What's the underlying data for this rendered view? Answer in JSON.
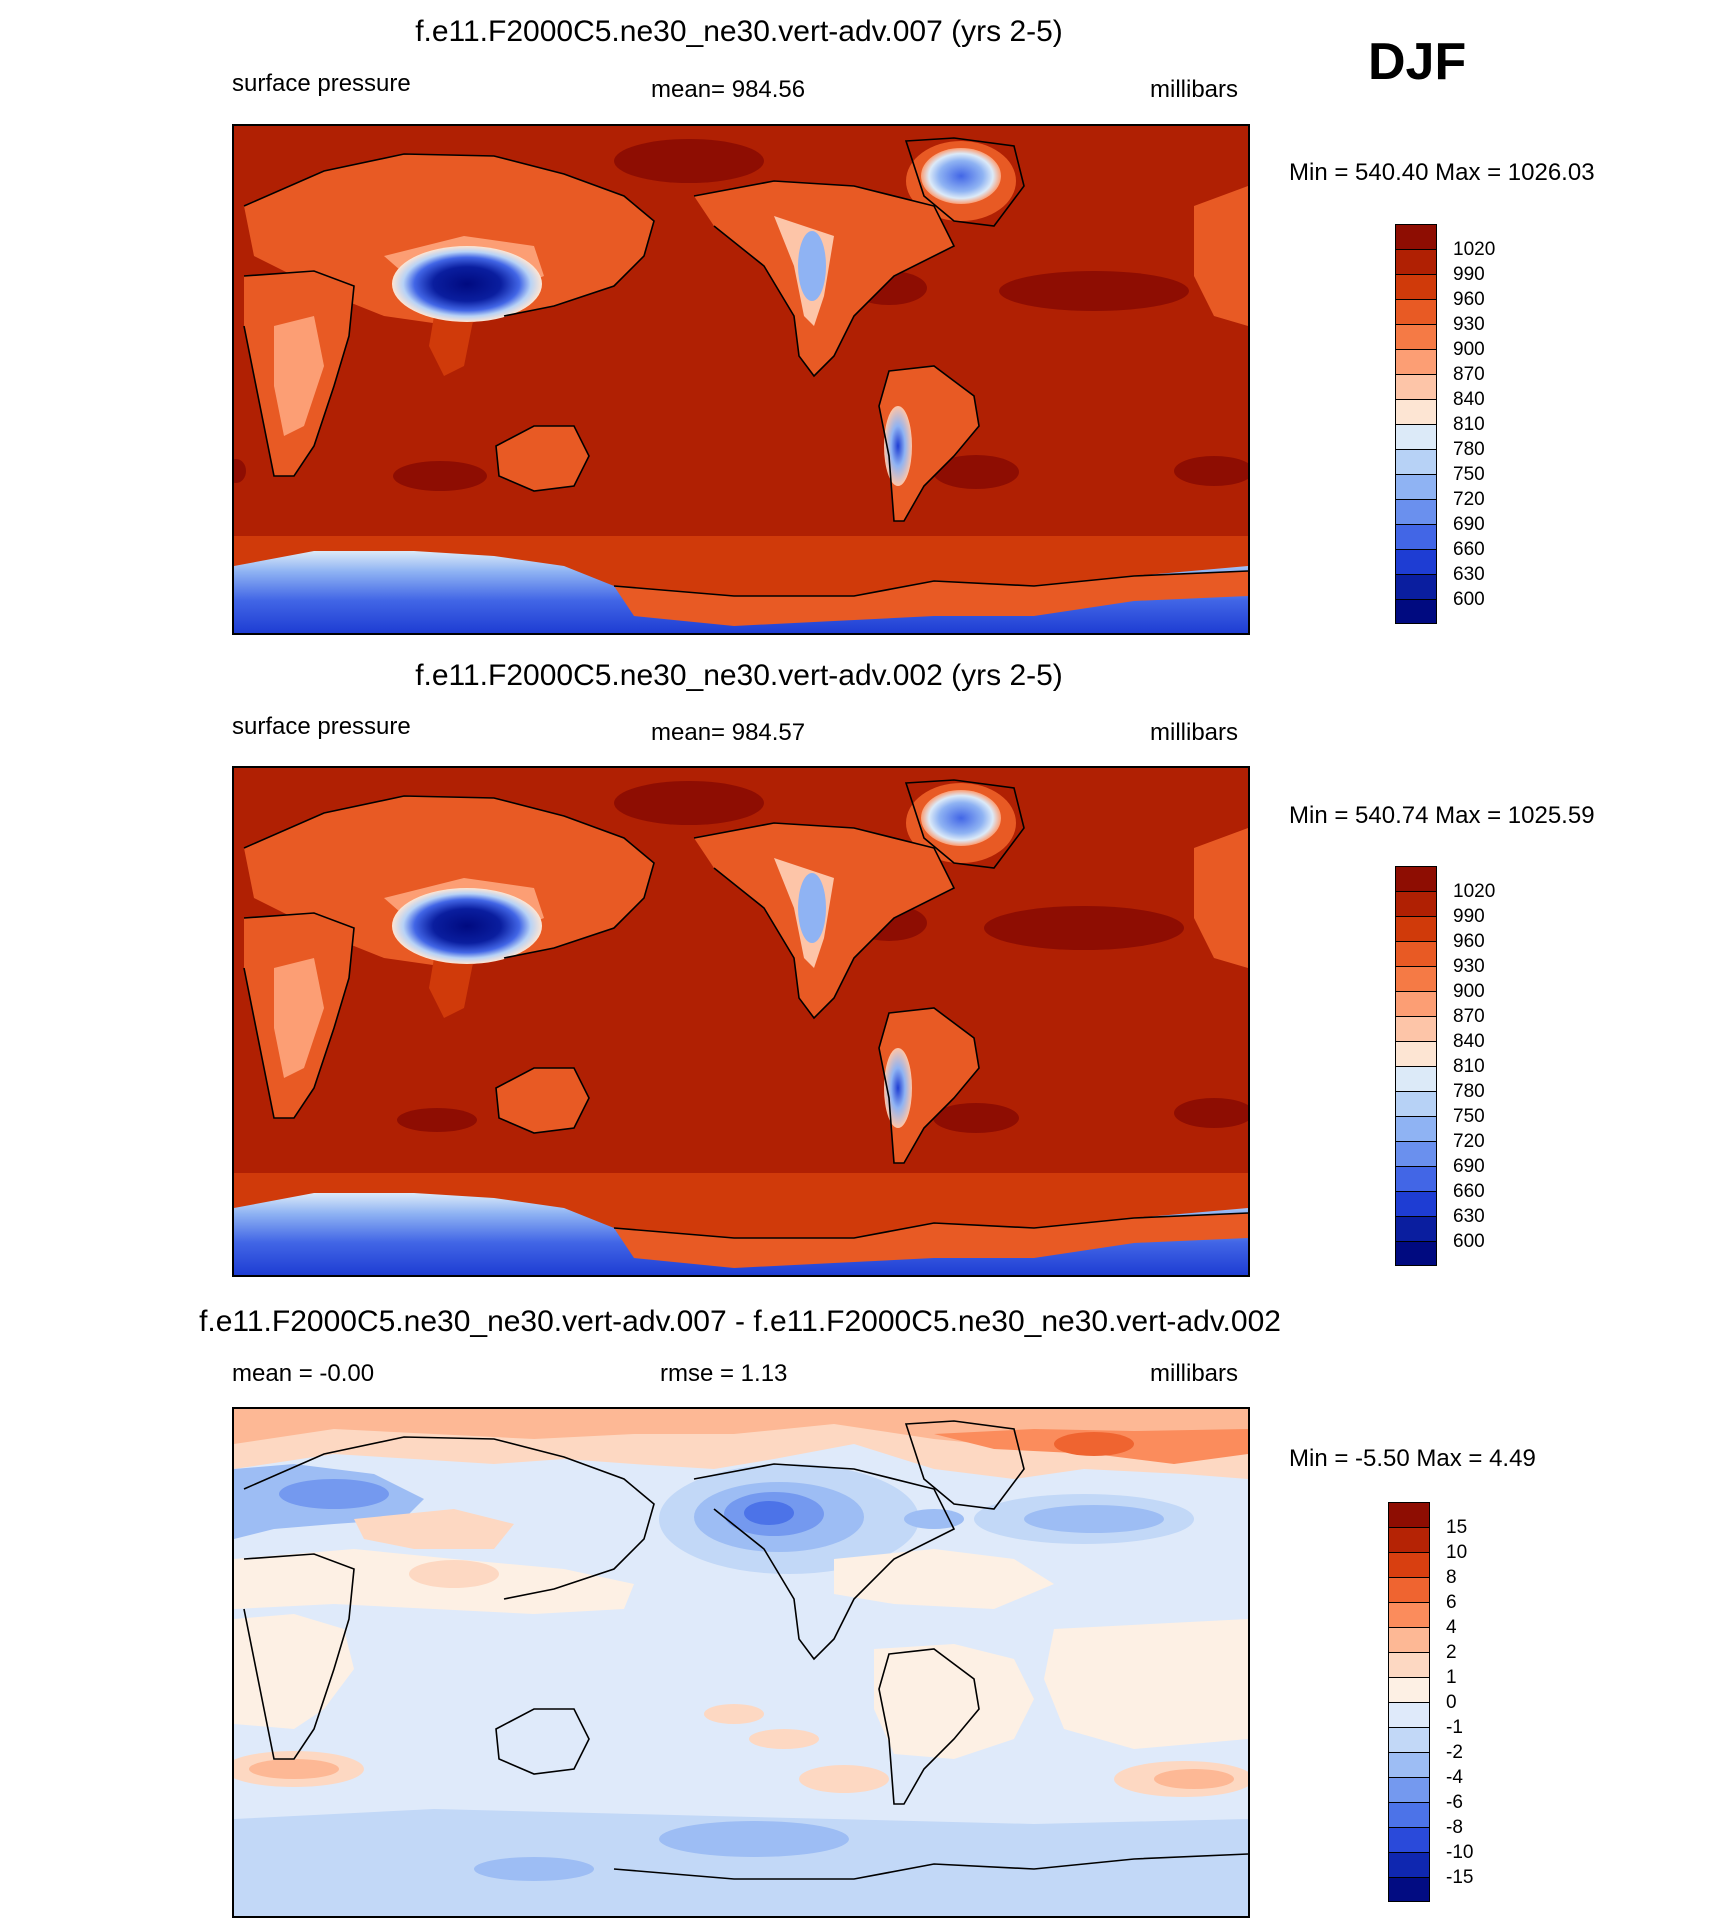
{
  "season": "DJF",
  "panels": [
    {
      "id": "test",
      "title": "f.e11.F2000C5.ne30_ne30.vert-adv.007 (yrs 2-5)",
      "left_label": "surface pressure",
      "center_label": "mean= 984.56",
      "right_label": "millibars",
      "minmax": "Min = 540.40 Max = 1026.03",
      "colorbar": {
        "levels": [
          "1020",
          "990",
          "960",
          "930",
          "900",
          "870",
          "840",
          "810",
          "780",
          "750",
          "720",
          "690",
          "660",
          "630",
          "600"
        ],
        "colors": [
          "#8e0d02",
          "#b02003",
          "#d03a0a",
          "#e85a24",
          "#f57a45",
          "#fc9e74",
          "#fdc5a8",
          "#fde5d3",
          "#dceaf8",
          "#b7d2f6",
          "#8fb3f3",
          "#6a90ee",
          "#4266e6",
          "#1e3dd3",
          "#0a1e9f",
          "#000a80"
        ]
      }
    },
    {
      "id": "control",
      "title": "f.e11.F2000C5.ne30_ne30.vert-adv.002 (yrs 2-5)",
      "left_label": "surface pressure",
      "center_label": "mean= 984.57",
      "right_label": "millibars",
      "minmax": "Min = 540.74 Max = 1025.59",
      "colorbar": {
        "levels": [
          "1020",
          "990",
          "960",
          "930",
          "900",
          "870",
          "840",
          "810",
          "780",
          "750",
          "720",
          "690",
          "660",
          "630",
          "600"
        ],
        "colors": [
          "#8e0d02",
          "#b02003",
          "#d03a0a",
          "#e85a24",
          "#f57a45",
          "#fc9e74",
          "#fdc5a8",
          "#fde5d3",
          "#dceaf8",
          "#b7d2f6",
          "#8fb3f3",
          "#6a90ee",
          "#4266e6",
          "#1e3dd3",
          "#0a1e9f",
          "#000a80"
        ]
      }
    },
    {
      "id": "difference",
      "title": "f.e11.F2000C5.ne30_ne30.vert-adv.007 - f.e11.F2000C5.ne30_ne30.vert-adv.002",
      "left_label": "mean =  -0.00",
      "center_label": "rmse =   1.13",
      "right_label": "millibars",
      "minmax": "Min =  -5.50 Max =   4.49",
      "colorbar": {
        "levels": [
          "15",
          "10",
          "8",
          "6",
          "4",
          "2",
          "1",
          "0",
          "-1",
          "-2",
          "-4",
          "-6",
          "-8",
          "-10",
          "-15"
        ],
        "colors": [
          "#8e0d02",
          "#b52305",
          "#d83f10",
          "#ef6430",
          "#fb8c5c",
          "#fdb895",
          "#fdd8c2",
          "#fdf0e4",
          "#dfeafa",
          "#c2d8f7",
          "#9dbdf4",
          "#7499ef",
          "#4c73e8",
          "#2a4ada",
          "#0f27b0",
          "#020c82"
        ]
      }
    }
  ]
}
